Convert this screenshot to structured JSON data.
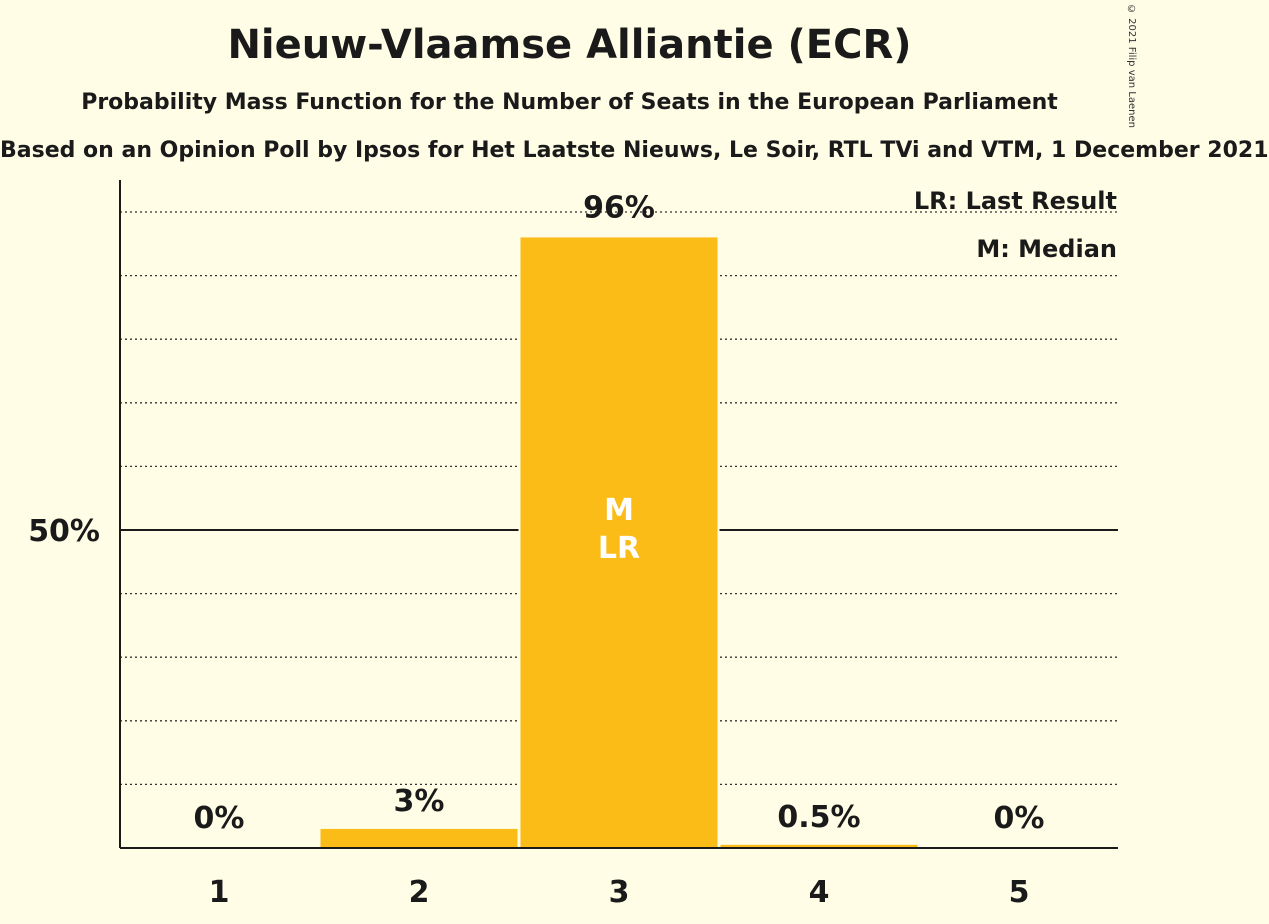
{
  "chart_data": {
    "type": "bar",
    "title": "Nieuw-Vlaamse Alliantie (ECR)",
    "subtitle": "Probability Mass Function for the Number of Seats in the European Parliament",
    "source": "Based on an Opinion Poll by Ipsos for Het Laatste Nieuws, Le Soir, RTL TVi and VTM, 1 December 2021",
    "copyright": "© 2021 Filip van Laenen",
    "categories": [
      "1",
      "2",
      "3",
      "4",
      "5"
    ],
    "values": [
      0,
      3,
      96,
      0.5,
      0
    ],
    "value_labels": [
      "0%",
      "3%",
      "96%",
      "0.5%",
      "0%"
    ],
    "ylim": [
      0,
      105
    ],
    "y_major_tick": 50,
    "y_major_tick_label": "50%",
    "y_minor_step": 10,
    "grid": true,
    "bar_color": "#fbbc18",
    "median_category": "3",
    "last_result_category": "3",
    "in_bar_labels": [
      "M",
      "LR"
    ],
    "legend": {
      "placement": "top-right",
      "entries": [
        "LR: Last Result",
        "M: Median"
      ]
    }
  }
}
